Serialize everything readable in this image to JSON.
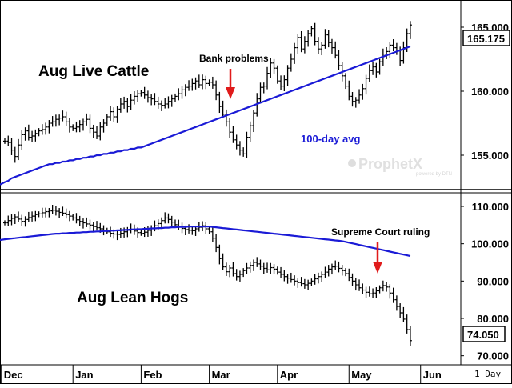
{
  "chart_data": [
    {
      "type": "ohlc",
      "title": "Aug Live Cattle",
      "ylim": [
        152.5,
        167
      ],
      "yticks": [
        155,
        160,
        165
      ],
      "ytick_labels": [
        "155.000",
        "160.000",
        "165.000"
      ],
      "last_price": "165.175",
      "ma_label": "100-day avg",
      "ma_color": "#1a1ad6",
      "bar_color": "#000000",
      "grid": false,
      "x": [
        1,
        2,
        3,
        4,
        5,
        6,
        7,
        8,
        9,
        10,
        11,
        12,
        13,
        14,
        15,
        16,
        17,
        18,
        19,
        20,
        21,
        22,
        23,
        24,
        25,
        26,
        27,
        28,
        29,
        30,
        31,
        32,
        33,
        34,
        35,
        36,
        37,
        38,
        39,
        40,
        41,
        42,
        43,
        44,
        45,
        46,
        47,
        48,
        49,
        50,
        51,
        52,
        53,
        54,
        55,
        56,
        57,
        58,
        59,
        60,
        61,
        62,
        63,
        64,
        65,
        66,
        67,
        68,
        69,
        70,
        71,
        72,
        73,
        74,
        75,
        76,
        77,
        78,
        79,
        80,
        81,
        82,
        83,
        84,
        85,
        86,
        87,
        88,
        89,
        90,
        91,
        92,
        93,
        94,
        95,
        96,
        97,
        98,
        99,
        100,
        101,
        102,
        103,
        104,
        105,
        106,
        107,
        108,
        109,
        110,
        111,
        112,
        113,
        114,
        115,
        116,
        117,
        118,
        119,
        120
      ],
      "close": [
        156.1,
        156.0,
        155.4,
        154.9,
        155.8,
        156.6,
        156.9,
        156.4,
        156.5,
        156.7,
        156.9,
        157.0,
        157.2,
        157.5,
        157.6,
        157.8,
        157.9,
        158.0,
        157.6,
        157.2,
        157.1,
        157.2,
        157.4,
        157.6,
        157.8,
        157.1,
        156.8,
        156.5,
        157.2,
        157.5,
        158.0,
        158.4,
        158.0,
        158.6,
        159.0,
        159.2,
        158.8,
        159.3,
        159.6,
        159.8,
        159.9,
        159.7,
        159.5,
        159.4,
        159.2,
        159.0,
        158.9,
        159.0,
        159.2,
        159.4,
        159.6,
        159.8,
        160.1,
        160.3,
        160.4,
        160.6,
        160.8,
        160.5,
        160.9,
        160.6,
        160.7,
        160.5,
        159.7,
        158.8,
        158.2,
        157.6,
        156.8,
        156.2,
        155.8,
        155.4,
        155.1,
        156.4,
        157.3,
        158.3,
        159.4,
        160.3,
        160.4,
        161.4,
        162.2,
        161.8,
        160.8,
        160.4,
        160.9,
        161.8,
        162.5,
        163.4,
        164.2,
        163.3,
        163.9,
        164.5,
        164.9,
        163.9,
        163.3,
        163.6,
        164.4,
        163.8,
        163.4,
        162.8,
        162.0,
        161.2,
        160.4,
        159.6,
        159.2,
        159.3,
        159.7,
        160.2,
        161.0,
        161.6,
        161.9,
        161.5,
        162.3,
        162.9,
        163.1,
        163.6,
        163.4,
        163.2,
        162.4,
        163.4,
        164.5,
        165.175
      ],
      "ma": [
        152.9,
        153.0,
        153.2,
        153.3,
        153.4,
        153.5,
        153.6,
        153.7,
        153.8,
        153.9,
        154.0,
        154.1,
        154.2,
        154.3,
        154.3,
        154.4,
        154.4,
        154.5,
        154.5,
        154.6,
        154.6,
        154.7,
        154.7,
        154.8,
        154.8,
        154.9,
        154.9,
        155.0,
        155.0,
        155.1,
        155.1,
        155.2,
        155.2,
        155.3,
        155.3,
        155.4,
        155.4,
        155.5,
        155.5,
        155.6,
        155.6,
        155.7,
        155.8,
        155.9,
        156.0,
        156.1,
        156.2,
        156.3,
        156.4,
        156.5,
        156.6,
        156.7,
        156.8,
        156.9,
        157.0,
        157.1,
        157.2,
        157.3,
        157.4,
        157.5,
        157.6,
        157.7,
        157.8,
        157.9,
        158.0,
        158.1,
        158.2,
        158.3,
        158.4,
        158.5,
        158.6,
        158.7,
        158.8,
        158.9,
        159.0,
        159.1,
        159.2,
        159.3,
        159.4,
        159.5,
        159.6,
        159.7,
        159.8,
        159.9,
        160.0,
        160.1,
        160.2,
        160.3,
        160.4,
        160.5,
        160.6,
        160.7,
        160.8,
        160.9,
        161.0,
        161.1,
        161.2,
        161.3,
        161.4,
        161.5,
        161.6,
        161.7,
        161.8,
        161.9,
        162.0,
        162.1,
        162.2,
        162.3,
        162.4,
        162.5,
        162.6,
        162.7,
        162.8,
        162.9,
        163.0,
        163.1,
        163.2,
        163.3,
        163.4,
        163.5
      ],
      "annotations": [
        {
          "text": "Bank problems",
          "x": 62,
          "color": "#e01b1b"
        }
      ]
    },
    {
      "type": "ohlc",
      "title": "Aug Lean Hogs",
      "ylim": [
        68,
        113
      ],
      "yticks": [
        70,
        80,
        90,
        100,
        110
      ],
      "ytick_labels": [
        "70.000",
        "80.000",
        "90.000",
        "100.000",
        "110.000"
      ],
      "last_price": "74.050",
      "ma_color": "#1a1ad6",
      "bar_color": "#000000",
      "grid": false,
      "x": [
        1,
        2,
        3,
        4,
        5,
        6,
        7,
        8,
        9,
        10,
        11,
        12,
        13,
        14,
        15,
        16,
        17,
        18,
        19,
        20,
        21,
        22,
        23,
        24,
        25,
        26,
        27,
        28,
        29,
        30,
        31,
        32,
        33,
        34,
        35,
        36,
        37,
        38,
        39,
        40,
        41,
        42,
        43,
        44,
        45,
        46,
        47,
        48,
        49,
        50,
        51,
        52,
        53,
        54,
        55,
        56,
        57,
        58,
        59,
        60,
        61,
        62,
        63,
        64,
        65,
        66,
        67,
        68,
        69,
        70,
        71,
        72,
        73,
        74,
        75,
        76,
        77,
        78,
        79,
        80,
        81,
        82,
        83,
        84,
        85,
        86,
        87,
        88,
        89,
        90,
        91,
        92,
        93,
        94,
        95,
        96,
        97,
        98,
        99,
        100,
        101,
        102,
        103,
        104,
        105,
        106,
        107,
        108,
        109,
        110,
        111,
        112,
        113,
        114,
        115,
        116,
        117,
        118,
        119,
        120
      ],
      "close": [
        105.6,
        106.2,
        106.8,
        107.2,
        106.6,
        106.0,
        106.5,
        107.0,
        107.4,
        107.8,
        108.0,
        108.3,
        108.6,
        108.8,
        109.0,
        108.7,
        108.4,
        108.2,
        107.8,
        107.4,
        106.9,
        106.4,
        106.0,
        105.6,
        105.3,
        105.0,
        104.6,
        104.3,
        104.0,
        103.6,
        103.2,
        102.8,
        102.6,
        102.5,
        102.8,
        103.2,
        103.6,
        103.9,
        103.4,
        103.0,
        102.8,
        103.1,
        103.6,
        104.2,
        104.8,
        105.4,
        106.2,
        106.9,
        106.5,
        105.8,
        105.1,
        104.6,
        104.1,
        103.8,
        103.6,
        103.5,
        104.0,
        104.4,
        104.8,
        104.0,
        103.2,
        101.5,
        99.0,
        96.0,
        93.8,
        92.5,
        93.5,
        92.0,
        91.2,
        91.8,
        92.8,
        93.5,
        94.2,
        95.0,
        94.6,
        94.0,
        93.4,
        93.0,
        93.6,
        93.2,
        92.4,
        91.8,
        91.2,
        90.8,
        90.4,
        90.0,
        89.6,
        89.3,
        89.0,
        89.4,
        90.0,
        90.6,
        91.2,
        91.8,
        92.4,
        93.2,
        93.8,
        94.0,
        93.4,
        92.8,
        92.0,
        91.0,
        90.0,
        89.0,
        88.2,
        87.6,
        87.0,
        86.6,
        86.8,
        87.4,
        88.2,
        88.8,
        88.4,
        86.8,
        85.0,
        83.2,
        81.5,
        79.8,
        77.0,
        74.05
      ],
      "ma": [
        101.2,
        101.3,
        101.4,
        101.5,
        101.6,
        101.7,
        101.8,
        101.9,
        102.0,
        102.1,
        102.2,
        102.3,
        102.4,
        102.5,
        102.6,
        102.7,
        102.7,
        102.8,
        102.8,
        102.9,
        102.9,
        103.0,
        103.0,
        103.1,
        103.1,
        103.2,
        103.2,
        103.3,
        103.3,
        103.4,
        103.4,
        103.5,
        103.5,
        103.6,
        103.6,
        103.7,
        103.7,
        103.8,
        103.8,
        103.9,
        103.9,
        104.0,
        104.0,
        104.1,
        104.1,
        104.2,
        104.2,
        104.3,
        104.3,
        104.4,
        104.4,
        104.5,
        104.5,
        104.5,
        104.6,
        104.6,
        104.6,
        104.6,
        104.6,
        104.6,
        104.6,
        104.5,
        104.4,
        104.3,
        104.2,
        104.1,
        104.0,
        103.9,
        103.8,
        103.7,
        103.6,
        103.5,
        103.4,
        103.3,
        103.2,
        103.1,
        103.0,
        102.9,
        102.8,
        102.7,
        102.6,
        102.5,
        102.4,
        102.3,
        102.2,
        102.1,
        102.0,
        101.9,
        101.8,
        101.7,
        101.6,
        101.5,
        101.4,
        101.3,
        101.2,
        101.1,
        101.0,
        100.9,
        100.8,
        100.7,
        100.5,
        100.3,
        100.1,
        99.9,
        99.7,
        99.5,
        99.3,
        99.1,
        98.9,
        98.7,
        98.5,
        98.3,
        98.1,
        97.9,
        97.7,
        97.5,
        97.3,
        97.1,
        96.9,
        96.7
      ],
      "annotations": [
        {
          "text": "Supreme Court ruling",
          "x": 108,
          "color": "#e01b1b"
        }
      ]
    }
  ],
  "x_axis": {
    "months": [
      "Dec",
      "Jan",
      "Feb",
      "Mar",
      "Apr",
      "May",
      "Jun"
    ],
    "month_x": [
      0,
      21,
      41,
      61,
      81,
      102,
      123
    ],
    "interval_label": "1 Day"
  },
  "watermark": {
    "brand": "ProphetX",
    "powered_by": "powered by DTN"
  }
}
